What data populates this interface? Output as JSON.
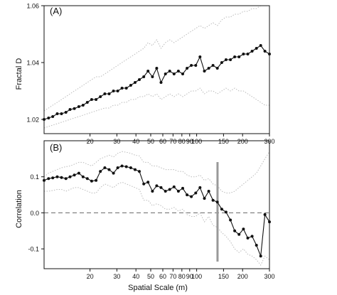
{
  "chart_data": [
    {
      "type": "line",
      "panel_label": "(A)",
      "ylabel": "Fractal D",
      "xlabel": "",
      "x_scale": "log",
      "xlim": [
        10,
        300
      ],
      "ylim": [
        1.015,
        1.06
      ],
      "yticks": [
        "1.02",
        "1.04",
        "1.06"
      ],
      "ytick_values": [
        1.02,
        1.04,
        1.06
      ],
      "xticks": [
        "20",
        "30",
        "40",
        "50",
        "60",
        "70",
        "80",
        "90",
        "100",
        "150",
        "200",
        "300"
      ],
      "xtick_values": [
        20,
        30,
        40,
        50,
        60,
        70,
        80,
        90,
        100,
        150,
        200,
        300
      ],
      "x": [
        10,
        10.7,
        11.4,
        12.2,
        13,
        13.9,
        14.8,
        15.8,
        16.9,
        18,
        19.2,
        20.5,
        21.9,
        23.4,
        25,
        26.7,
        28.5,
        30.4,
        32.4,
        34.6,
        37,
        39.5,
        42.1,
        45,
        48,
        51.3,
        54.7,
        58.4,
        62.4,
        66.6,
        71.1,
        75.9,
        81,
        86.5,
        92.3,
        98.6,
        105.2,
        112.4,
        120,
        128,
        136.7,
        146,
        155.8,
        166.4,
        177.6,
        189.6,
        202.5,
        216.2,
        230.8,
        246.4,
        263,
        280,
        300
      ],
      "values": [
        1.02,
        1.0205,
        1.021,
        1.022,
        1.022,
        1.0225,
        1.0235,
        1.0238,
        1.0245,
        1.025,
        1.026,
        1.027,
        1.027,
        1.028,
        1.029,
        1.029,
        1.03,
        1.03,
        1.031,
        1.031,
        1.032,
        1.033,
        1.034,
        1.035,
        1.037,
        1.035,
        1.038,
        1.033,
        1.036,
        1.037,
        1.036,
        1.037,
        1.036,
        1.038,
        1.039,
        1.039,
        1.042,
        1.037,
        1.038,
        1.039,
        1.038,
        1.04,
        1.041,
        1.041,
        1.042,
        1.042,
        1.043,
        1.043,
        1.044,
        1.045,
        1.046,
        1.044,
        1.043
      ],
      "upper_ci": [
        1.023,
        1.024,
        1.025,
        1.026,
        1.027,
        1.028,
        1.029,
        1.03,
        1.031,
        1.032,
        1.033,
        1.034,
        1.035,
        1.035,
        1.036,
        1.037,
        1.038,
        1.039,
        1.04,
        1.041,
        1.042,
        1.043,
        1.044,
        1.045,
        1.047,
        1.046,
        1.048,
        1.045,
        1.047,
        1.048,
        1.047,
        1.048,
        1.049,
        1.05,
        1.051,
        1.052,
        1.053,
        1.052,
        1.053,
        1.054,
        1.053,
        1.055,
        1.056,
        1.056,
        1.057,
        1.057,
        1.058,
        1.058,
        1.059,
        1.059,
        1.06,
        1.06,
        1.06
      ],
      "lower_ci": [
        1.017,
        1.0175,
        1.018,
        1.0185,
        1.019,
        1.0195,
        1.02,
        1.0205,
        1.021,
        1.0215,
        1.022,
        1.0225,
        1.023,
        1.0235,
        1.024,
        1.024,
        1.025,
        1.025,
        1.026,
        1.026,
        1.027,
        1.027,
        1.028,
        1.028,
        1.029,
        1.028,
        1.029,
        1.027,
        1.028,
        1.029,
        1.028,
        1.029,
        1.028,
        1.029,
        1.03,
        1.03,
        1.031,
        1.029,
        1.03,
        1.03,
        1.029,
        1.03,
        1.031,
        1.03,
        1.031,
        1.03,
        1.03,
        1.029,
        1.028,
        1.027,
        1.026,
        1.025,
        1.025
      ],
      "grid": false
    },
    {
      "type": "line",
      "panel_label": "(B)",
      "ylabel": "Correlation",
      "xlabel": "Spatial Scale (m)",
      "x_scale": "log",
      "xlim": [
        10,
        300
      ],
      "ylim": [
        -0.155,
        0.2
      ],
      "yticks": [
        "-0.1",
        "0.0",
        "0.1"
      ],
      "ytick_values": [
        -0.1,
        0.0,
        0.1
      ],
      "xticks": [
        "20",
        "30",
        "40",
        "50",
        "60",
        "70",
        "80",
        "90",
        "100",
        "150",
        "200",
        "300"
      ],
      "xtick_values": [
        20,
        30,
        40,
        50,
        60,
        70,
        80,
        90,
        100,
        150,
        200,
        300
      ],
      "x": [
        10,
        10.7,
        11.4,
        12.2,
        13,
        13.9,
        14.8,
        15.8,
        16.9,
        18,
        19.2,
        20.5,
        21.9,
        23.4,
        25,
        26.7,
        28.5,
        30.4,
        32.4,
        34.6,
        37,
        39.5,
        42.1,
        45,
        48,
        51.3,
        54.7,
        58.4,
        62.4,
        66.6,
        71.1,
        75.9,
        81,
        86.5,
        92.3,
        98.6,
        105.2,
        112.4,
        120,
        128,
        136.7,
        146,
        155.8,
        166.4,
        177.6,
        189.6,
        202.5,
        216.2,
        230.8,
        246.4,
        263,
        280,
        300
      ],
      "values": [
        0.09,
        0.095,
        0.097,
        0.1,
        0.098,
        0.095,
        0.1,
        0.105,
        0.11,
        0.1,
        0.095,
        0.088,
        0.09,
        0.115,
        0.125,
        0.12,
        0.11,
        0.125,
        0.13,
        0.128,
        0.125,
        0.12,
        0.115,
        0.08,
        0.085,
        0.06,
        0.075,
        0.07,
        0.06,
        0.065,
        0.072,
        0.06,
        0.068,
        0.05,
        0.045,
        0.055,
        0.07,
        0.04,
        0.06,
        0.035,
        0.03,
        0.01,
        0.002,
        -0.02,
        -0.05,
        -0.06,
        -0.045,
        -0.07,
        -0.065,
        -0.09,
        -0.12,
        -0.005,
        -0.025
      ],
      "upper_ci": [
        0.1,
        0.11,
        0.115,
        0.12,
        0.125,
        0.128,
        0.13,
        0.135,
        0.14,
        0.14,
        0.135,
        0.13,
        0.14,
        0.15,
        0.155,
        0.16,
        0.155,
        0.165,
        0.17,
        0.168,
        0.165,
        0.16,
        0.158,
        0.14,
        0.14,
        0.13,
        0.13,
        0.125,
        0.12,
        0.12,
        0.12,
        0.115,
        0.115,
        0.105,
        0.1,
        0.1,
        0.105,
        0.09,
        0.095,
        0.08,
        0.075,
        0.06,
        0.055,
        0.055,
        0.06,
        0.07,
        0.08,
        0.09,
        0.1,
        0.11,
        0.13,
        0.15,
        0.17
      ],
      "lower_ci": [
        0.06,
        0.06,
        0.062,
        0.065,
        0.065,
        0.06,
        0.065,
        0.07,
        0.07,
        0.065,
        0.06,
        0.055,
        0.055,
        0.07,
        0.08,
        0.075,
        0.07,
        0.08,
        0.085,
        0.08,
        0.075,
        0.07,
        0.065,
        0.035,
        0.035,
        0.02,
        0.025,
        0.02,
        0.01,
        0.01,
        0.015,
        0.005,
        0.01,
        -0.005,
        -0.01,
        -0.01,
        0.0,
        -0.025,
        -0.01,
        -0.035,
        -0.04,
        -0.055,
        -0.065,
        -0.08,
        -0.1,
        -0.11,
        -0.1,
        -0.115,
        -0.12,
        -0.13,
        -0.145,
        -0.12,
        -0.13
      ],
      "reference_line_y": 0.0,
      "threshold_marker_x": 137,
      "grid": false
    }
  ]
}
